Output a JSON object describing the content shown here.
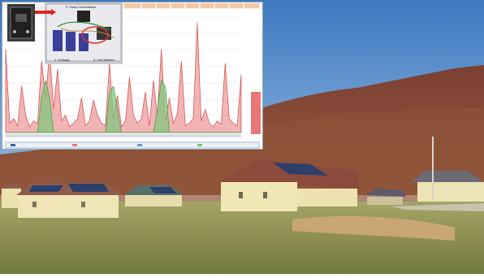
{
  "photo": {
    "labels": {
      "top": "2. Data Concentrator",
      "bottom_left": "1. eGauge",
      "bottom_right": "3. Cell Modem"
    }
  },
  "chart_data": {
    "type": "area",
    "series": [
      {
        "name": "",
        "color": "#e87878",
        "values": [
          0.72,
          0.08,
          0.12,
          0.06,
          0.4,
          0.15,
          0.05,
          0.1,
          0.08,
          0.62,
          0.3,
          0.7,
          0.2,
          0.55,
          0.1,
          0.15,
          0.05,
          0.08,
          0.12,
          0.3,
          0.06,
          0.1,
          0.28,
          0.15,
          0.08,
          0.06,
          0.6,
          0.12,
          0.32,
          0.05,
          0.1,
          0.48,
          0.15,
          0.08,
          0.12,
          0.35,
          0.06,
          0.45,
          0.15,
          0.72,
          0.1,
          0.3,
          0.08,
          0.16,
          0.62,
          0.06,
          0.08,
          0.12,
          0.95,
          0.1,
          0.2,
          0.08,
          0.05,
          0.1,
          0.07,
          0.6,
          0.12,
          0.08,
          0.06,
          0.5
        ]
      },
      {
        "name": "",
        "color": "#7cc87c",
        "values": [
          0.0,
          0.0,
          0.0,
          0.0,
          0.0,
          0.0,
          0.0,
          0.0,
          0.0,
          0.3,
          0.45,
          0.3,
          0.0,
          0.0,
          0.0,
          0.0,
          0.0,
          0.0,
          0.0,
          0.0,
          0.0,
          0.0,
          0.0,
          0.0,
          0.0,
          0.0,
          0.35,
          0.4,
          0.2,
          0.0,
          0.0,
          0.0,
          0.0,
          0.0,
          0.0,
          0.0,
          0.0,
          0.0,
          0.2,
          0.45,
          0.4,
          0.0,
          0.0,
          0.0,
          0.0,
          0.0,
          0.0,
          0.0,
          0.0,
          0.0,
          0.0,
          0.0,
          0.0,
          0.0,
          0.0,
          0.0,
          0.0,
          0.0,
          0.0,
          0.0
        ]
      }
    ]
  },
  "colors": {
    "sky": "#4f88c8",
    "hill": "#8a4a3a",
    "grass": "#9a9a58",
    "house": "#f1e7b5",
    "roof": "#8a4b3c",
    "solar": "#2c3f6a"
  }
}
